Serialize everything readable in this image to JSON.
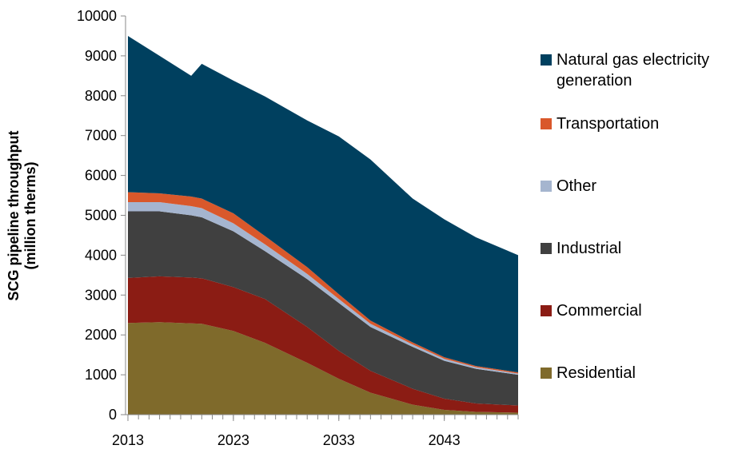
{
  "chart_data": {
    "type": "stacked_area",
    "ylabel": [
      "SCG pipeline throughput",
      "(million therms)"
    ],
    "x": [
      2013,
      2016,
      2019,
      2020,
      2023,
      2026,
      2030,
      2033,
      2036,
      2040,
      2043,
      2046,
      2050
    ],
    "xlim": [
      2013,
      2050
    ],
    "xticks": [
      2013,
      2023,
      2033,
      2043
    ],
    "ylim": [
      0,
      10000
    ],
    "yticks": [
      0,
      1000,
      2000,
      3000,
      4000,
      5000,
      6000,
      7000,
      8000,
      9000,
      10000
    ],
    "series": [
      {
        "name": "Residential",
        "color": "#7f6a2b",
        "values": [
          2300,
          2320,
          2290,
          2280,
          2100,
          1800,
          1300,
          900,
          550,
          250,
          120,
          70,
          50
        ]
      },
      {
        "name": "Commercial",
        "color": "#8b1c14",
        "values": [
          1130,
          1150,
          1150,
          1140,
          1100,
          1100,
          900,
          700,
          550,
          400,
          280,
          210,
          180
        ]
      },
      {
        "name": "Industrial",
        "color": "#404040",
        "values": [
          1670,
          1630,
          1560,
          1530,
          1400,
          1200,
          1200,
          1200,
          1100,
          1050,
          950,
          870,
          770
        ]
      },
      {
        "name": "Other",
        "color": "#a5b5cf",
        "values": [
          230,
          230,
          230,
          230,
          200,
          170,
          130,
          100,
          80,
          60,
          50,
          40,
          30
        ]
      },
      {
        "name": "Transportation",
        "color": "#d9582b",
        "values": [
          250,
          220,
          240,
          240,
          250,
          210,
          170,
          120,
          80,
          50,
          40,
          30,
          30
        ]
      },
      {
        "name": "Natural gas electricity generation",
        "color": "#00405f",
        "values": [
          3920,
          3450,
          3030,
          3380,
          3330,
          3500,
          3680,
          3960,
          4040,
          3610,
          3460,
          3230,
          2940
        ]
      }
    ]
  }
}
